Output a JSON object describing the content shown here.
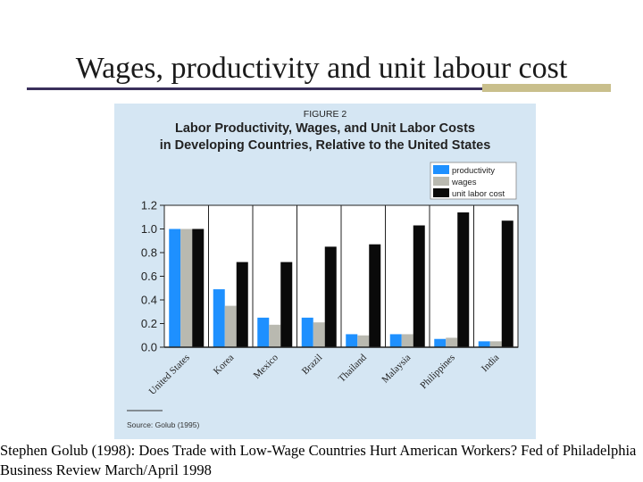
{
  "slide": {
    "title": "Wages, productivity and unit labour cost",
    "citation": "Stephen Golub (1998): Does Trade with Low-Wage Countries Hurt American Workers? Fed of Philadelphia Business Review March/April 1998"
  },
  "chart_data": {
    "type": "bar",
    "figure_label": "FIGURE 2",
    "title": "Labor Productivity, Wages, and Unit Labor Costs in Developing Countries, Relative to the United States",
    "title_lines": [
      "Labor Productivity, Wages, and Unit Labor Costs",
      "in Developing Countries, Relative to the United States"
    ],
    "source": "Source: Golub (1995)",
    "categories": [
      "United States",
      "Korea",
      "Mexico",
      "Brazil",
      "Thailand",
      "Malaysia",
      "Philippines",
      "India"
    ],
    "series": [
      {
        "name": "productivity",
        "color": "#1e90ff",
        "values": [
          1.0,
          0.49,
          0.25,
          0.25,
          0.11,
          0.11,
          0.07,
          0.05
        ]
      },
      {
        "name": "wages",
        "color": "#b9b9b0",
        "values": [
          1.0,
          0.35,
          0.19,
          0.21,
          0.1,
          0.11,
          0.08,
          0.05
        ]
      },
      {
        "name": "unit labor cost",
        "color": "#0a0a0a",
        "values": [
          1.0,
          0.72,
          0.72,
          0.85,
          0.87,
          1.03,
          1.14,
          1.07
        ]
      }
    ],
    "yticks": [
      "0.0",
      "0.2",
      "0.4",
      "0.6",
      "0.8",
      "1.0",
      "1.2"
    ],
    "ylim": [
      0,
      1.2
    ],
    "legend_position": "top-right",
    "grid": false
  }
}
